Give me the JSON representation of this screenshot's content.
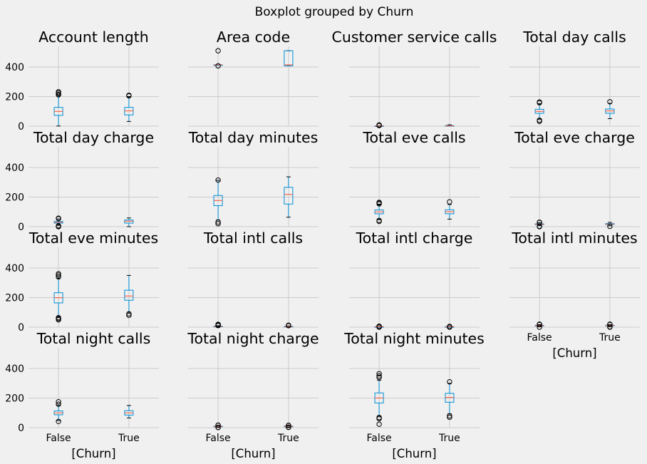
{
  "suptitle": "Boxplot grouped by Churn",
  "colors": {
    "background": "#f0f0f0",
    "grid": "#cbcbcb",
    "box": "#008fd5",
    "median": "#fc4f30",
    "whisker": "#008fd5",
    "flier": "#000000"
  },
  "chart_data": {
    "type": "boxplot",
    "grouped_by": "Churn",
    "categories": [
      "False",
      "True"
    ],
    "ylim": [
      0,
      540
    ],
    "yticks": [
      0,
      200,
      400
    ],
    "grid": true,
    "shared_y": true,
    "xlabel": "[Churn]",
    "panels": [
      {
        "title": "Account length",
        "boxes": [
          {
            "q1": 73,
            "median": 100,
            "q3": 127,
            "whislo": 1,
            "whishi": 208,
            "fliers": [
              212,
              215,
              225,
              232
            ]
          },
          {
            "q1": 76,
            "median": 103,
            "q3": 127,
            "whislo": 32,
            "whishi": 200,
            "fliers": [
              205,
              209
            ]
          }
        ]
      },
      {
        "title": "Area code",
        "boxes": [
          {
            "q1": 415,
            "median": 415,
            "q3": 415,
            "whislo": 415,
            "whishi": 415,
            "fliers": [
              408,
              510
            ]
          },
          {
            "q1": 408,
            "median": 415,
            "q3": 510,
            "whislo": 408,
            "whishi": 510,
            "fliers": []
          }
        ]
      },
      {
        "title": "Customer service calls",
        "boxes": [
          {
            "q1": 1,
            "median": 1,
            "q3": 2,
            "whislo": 0,
            "whishi": 3,
            "fliers": [
              4,
              5,
              6,
              7,
              8
            ]
          },
          {
            "q1": 1,
            "median": 2,
            "q3": 4,
            "whislo": 0,
            "whishi": 9,
            "fliers": []
          }
        ]
      },
      {
        "title": "Total day calls",
        "boxes": [
          {
            "q1": 87,
            "median": 100,
            "q3": 114,
            "whislo": 49,
            "whishi": 152,
            "fliers": [
              33,
              40,
              158,
              163
            ]
          },
          {
            "q1": 87,
            "median": 103,
            "q3": 116,
            "whislo": 51,
            "whishi": 154,
            "fliers": [
              165
            ]
          }
        ]
      },
      {
        "title": "Total day charge",
        "boxes": [
          {
            "q1": 24,
            "median": 30,
            "q3": 35,
            "whislo": 9,
            "whishi": 52,
            "fliers": [
              0,
              3,
              6,
              54,
              57
            ]
          },
          {
            "q1": 24,
            "median": 37,
            "q3": 45,
            "whislo": 0,
            "whishi": 59,
            "fliers": []
          }
        ]
      },
      {
        "title": "Total day minutes",
        "boxes": [
          {
            "q1": 142,
            "median": 177,
            "q3": 211,
            "whislo": 45,
            "whishi": 313,
            "fliers": [
              20,
              31,
              315
            ]
          },
          {
            "q1": 153,
            "median": 218,
            "q3": 266,
            "whislo": 64,
            "whishi": 337,
            "fliers": []
          }
        ]
      },
      {
        "title": "Total eve calls",
        "boxes": [
          {
            "q1": 87,
            "median": 100,
            "q3": 113,
            "whislo": 48,
            "whishi": 152,
            "fliers": [
              36,
              42,
              154,
              160,
              164
            ]
          },
          {
            "q1": 87,
            "median": 101,
            "q3": 114,
            "whislo": 51,
            "whishi": 150,
            "fliers": [
              168
            ]
          }
        ]
      },
      {
        "title": "Total eve charge",
        "boxes": [
          {
            "q1": 14,
            "median": 17,
            "q3": 19,
            "whislo": 7,
            "whishi": 26,
            "fliers": [
              0,
              3,
              28,
              30
            ]
          },
          {
            "q1": 15,
            "median": 18,
            "q3": 21,
            "whislo": 6,
            "whishi": 29,
            "fliers": [
              2
            ]
          }
        ]
      },
      {
        "title": "Total eve minutes",
        "boxes": [
          {
            "q1": 164,
            "median": 199,
            "q3": 233,
            "whislo": 70,
            "whishi": 330,
            "fliers": [
              50,
              58,
              64,
              340,
              352,
              361
            ]
          },
          {
            "q1": 182,
            "median": 211,
            "q3": 250,
            "whislo": 101,
            "whishi": 350,
            "fliers": [
              80,
              90
            ]
          }
        ]
      },
      {
        "title": "Total intl calls",
        "boxes": [
          {
            "q1": 3,
            "median": 4,
            "q3": 6,
            "whislo": 0,
            "whishi": 10,
            "fliers": [
              11,
              12,
              14,
              16,
              18,
              19
            ]
          },
          {
            "q1": 2,
            "median": 4,
            "q3": 5,
            "whislo": 1,
            "whishi": 8,
            "fliers": [
              10,
              13
            ]
          }
        ]
      },
      {
        "title": "Total intl charge",
        "boxes": [
          {
            "q1": 2,
            "median": 3,
            "q3": 3,
            "whislo": 1,
            "whishi": 4,
            "fliers": [
              0,
              5,
              6
            ]
          },
          {
            "q1": 2,
            "median": 3,
            "q3": 3,
            "whislo": 1,
            "whishi": 5,
            "fliers": [
              0,
              5
            ]
          }
        ]
      },
      {
        "title": "Total intl minutes",
        "boxes": [
          {
            "q1": 8,
            "median": 10,
            "q3": 12,
            "whislo": 3,
            "whishi": 17,
            "fliers": [
              0,
              18,
              19,
              20
            ]
          },
          {
            "q1": 9,
            "median": 11,
            "q3": 13,
            "whislo": 4,
            "whishi": 17,
            "fliers": [
              0,
              2,
              18,
              20
            ]
          }
        ]
      },
      {
        "title": "Total night calls",
        "boxes": [
          {
            "q1": 87,
            "median": 100,
            "q3": 113,
            "whislo": 48,
            "whishi": 152,
            "fliers": [
              42,
              158,
              175
            ]
          },
          {
            "q1": 85,
            "median": 100,
            "q3": 115,
            "whislo": 66,
            "whishi": 150,
            "fliers": []
          }
        ]
      },
      {
        "title": "Total night charge",
        "boxes": [
          {
            "q1": 8,
            "median": 9,
            "q3": 10,
            "whislo": 4,
            "whishi": 14,
            "fliers": [
              1,
              2,
              16,
              17
            ]
          },
          {
            "q1": 8,
            "median": 9,
            "q3": 10,
            "whislo": 4,
            "whishi": 14,
            "fliers": [
              2,
              3,
              15,
              16
            ]
          }
        ]
      },
      {
        "title": "Total night minutes",
        "boxes": [
          {
            "q1": 167,
            "median": 201,
            "q3": 235,
            "whislo": 80,
            "whishi": 320,
            "fliers": [
              23,
              61,
              68,
              340,
              350,
              365
            ]
          },
          {
            "q1": 172,
            "median": 204,
            "q3": 232,
            "whislo": 93,
            "whishi": 300,
            "fliers": [
              70,
              80,
              310
            ]
          }
        ]
      }
    ]
  }
}
